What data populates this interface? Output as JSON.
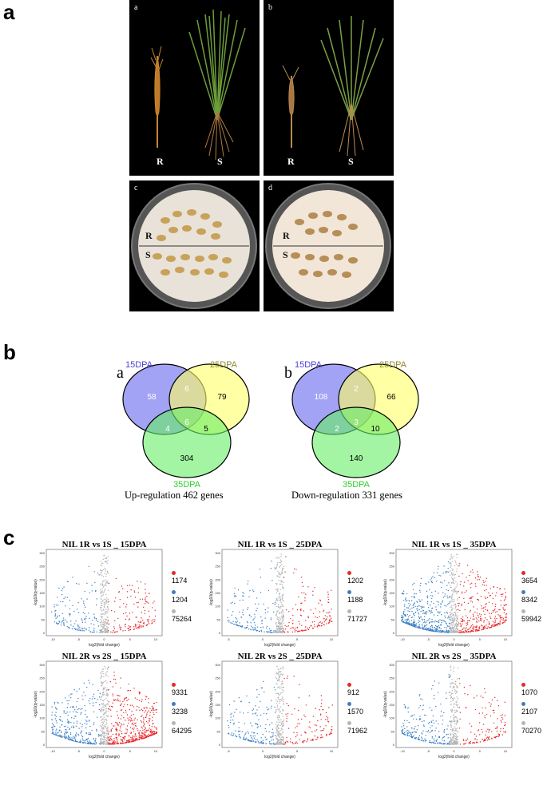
{
  "panels": {
    "a": {
      "letter": "a",
      "photos": [
        {
          "label": "a",
          "left_text": "R",
          "right_text": "S"
        },
        {
          "label": "b",
          "left_text": "R",
          "right_text": "S"
        },
        {
          "label": "c",
          "upper_text": "R",
          "lower_text": "S"
        },
        {
          "label": "d",
          "upper_text": "R",
          "lower_text": "S"
        }
      ]
    },
    "b": {
      "letter": "b",
      "venns": [
        {
          "letter": "a",
          "sets": [
            "15DPA",
            "25DPA",
            "35DPA"
          ],
          "set_colors": [
            "#4b3fd6",
            "#8f8a2a",
            "#2fd02f"
          ],
          "fill_colors": [
            "#6666ee",
            "#ffff66",
            "#66ee66"
          ],
          "values": {
            "only_15": "58",
            "15_25": "6",
            "only_25": "79",
            "15_35": "4",
            "all": "6",
            "25_35": "5",
            "only_35": "304"
          },
          "caption": "Up-regulation 462 genes"
        },
        {
          "letter": "b",
          "sets": [
            "15DPA",
            "25DPA",
            "35DPA"
          ],
          "set_colors": [
            "#4b3fd6",
            "#8f8a2a",
            "#2fd02f"
          ],
          "fill_colors": [
            "#6666ee",
            "#ffff66",
            "#66ee66"
          ],
          "values": {
            "only_15": "108",
            "15_25": "2",
            "only_25": "66",
            "15_35": "2",
            "all": "3",
            "25_35": "10",
            "only_35": "140"
          },
          "caption": "Down-regulation 331 genes"
        }
      ]
    },
    "c": {
      "letter": "c",
      "axis_labels": {
        "x": "log2(fold change)",
        "y": "-log10(q-value)"
      },
      "legend_colors": [
        "#e8282b",
        "#3b7fc4",
        "#b5b5b5"
      ],
      "plots": [
        {
          "title": "NIL 1R vs 1S _ 15DPA",
          "up": "1174",
          "down": "1204",
          "ns": "75264",
          "xticks": [
            "-10",
            "-5",
            "0",
            "5",
            "10"
          ],
          "yticks": [
            "0",
            "50",
            "100",
            "150",
            "200",
            "250",
            "300"
          ]
        },
        {
          "title": "NIL 1R vs 1S _ 25DPA",
          "up": "1202",
          "down": "1188",
          "ns": "71727",
          "xticks": [
            "-5",
            "0",
            "5",
            "10"
          ],
          "yticks": [
            "0",
            "50",
            "100",
            "150",
            "200",
            "250",
            "300"
          ]
        },
        {
          "title": "NIL 1R vs 1S _ 35DPA",
          "up": "3654",
          "down": "8342",
          "ns": "59942",
          "xticks": [
            "-10",
            "-5",
            "0",
            "5",
            "10"
          ],
          "yticks": [
            "0",
            "50",
            "100",
            "150",
            "200",
            "250",
            "300"
          ]
        },
        {
          "title": "NIL 2R vs 2S _ 15DPA",
          "up": "9331",
          "down": "3238",
          "ns": "64295",
          "xticks": [
            "-10",
            "-5",
            "0",
            "5",
            "10"
          ],
          "yticks": [
            "0",
            "50",
            "100",
            "150",
            "200",
            "250",
            "300"
          ]
        },
        {
          "title": "NIL 2R vs 2S _ 25DPA",
          "up": "912",
          "down": "1570",
          "ns": "71962",
          "xticks": [
            "-5",
            "0",
            "5",
            "10"
          ],
          "yticks": [
            "0",
            "50",
            "100",
            "150",
            "200",
            "250",
            "300"
          ]
        },
        {
          "title": "NIL 2R vs 2S _ 35DPA",
          "up": "1070",
          "down": "2107",
          "ns": "70270",
          "xticks": [
            "-10",
            "-5",
            "0",
            "5",
            "10"
          ],
          "yticks": [
            "0",
            "50",
            "100",
            "150",
            "200",
            "250",
            "300"
          ]
        }
      ]
    }
  }
}
